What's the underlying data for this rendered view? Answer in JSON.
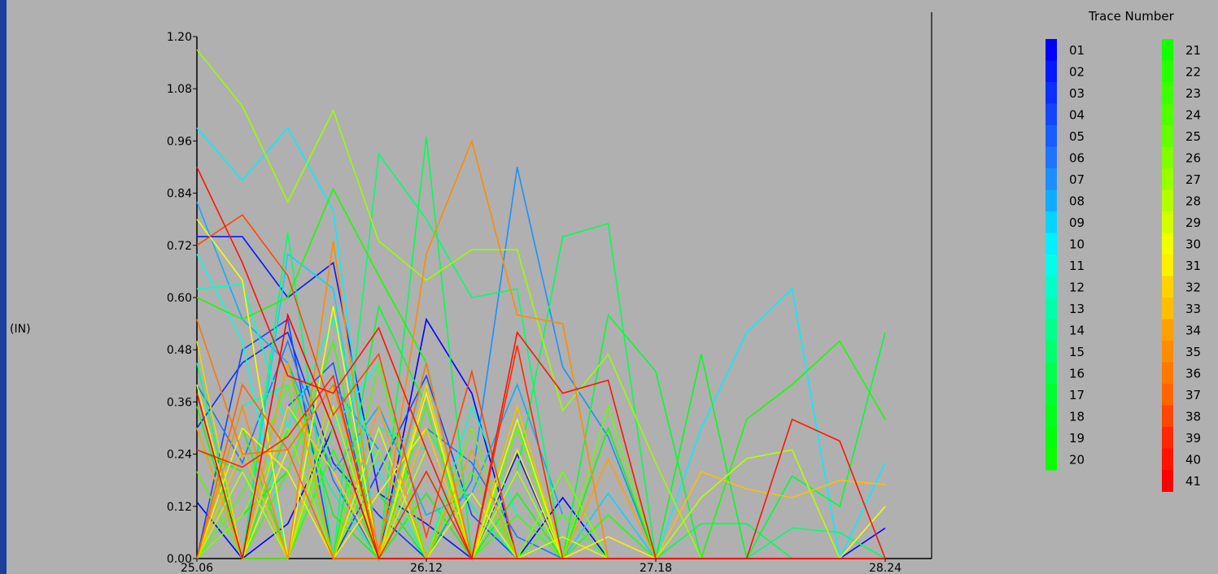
{
  "chart_data": {
    "type": "line",
    "ylabel": "(IN)",
    "legend_title": "Trace Number",
    "legend_position": "right",
    "grid": false,
    "xlim": [
      25.06,
      28.24
    ],
    "ylim": [
      0,
      1.2
    ],
    "x_ticks": [
      "25.06",
      "26.12",
      "27.18",
      "28.24"
    ],
    "y_ticks": [
      "0.00",
      "0.12",
      "0.24",
      "0.36",
      "0.48",
      "0.60",
      "0.72",
      "0.84",
      "0.96",
      "1.08",
      "1.20"
    ],
    "x": [
      25.06,
      25.27,
      25.48,
      25.69,
      25.9,
      26.12,
      26.33,
      26.54,
      26.75,
      26.96,
      27.18,
      27.39,
      27.6,
      27.81,
      28.03,
      28.24
    ],
    "series": [
      {
        "name": "01",
        "color": "#0000ff",
        "values": [
          0.13,
          0.0,
          0.08,
          0.3,
          0.0,
          0.55,
          0.38,
          0.0,
          0.14,
          0.0,
          0.0,
          0.0,
          0.0,
          0.0,
          0.0,
          0.07
        ]
      },
      {
        "name": "02",
        "color": "#0618ff",
        "values": [
          0.74,
          0.74,
          0.6,
          0.68,
          0.15,
          0.08,
          0.0,
          0.24,
          0.0,
          0.0,
          0.0,
          0.0,
          0.0,
          0.0,
          0.0,
          0.0
        ]
      },
      {
        "name": "03",
        "color": "#0c2fff",
        "values": [
          0.3,
          0.45,
          0.52,
          0.22,
          0.1,
          0.0,
          0.3,
          0.0,
          0.0,
          0.0,
          0.0,
          0.0,
          0.0,
          0.0,
          0.0,
          0.0
        ]
      },
      {
        "name": "04",
        "color": "#1246ff",
        "values": [
          0.0,
          0.48,
          0.55,
          0.0,
          0.2,
          0.42,
          0.1,
          0.0,
          0.0,
          0.0,
          0.0,
          0.0,
          0.0,
          0.0,
          0.0,
          0.0
        ]
      },
      {
        "name": "05",
        "color": "#185dff",
        "values": [
          0.2,
          0.0,
          0.35,
          0.45,
          0.0,
          0.15,
          0.0,
          0.2,
          0.0,
          0.0,
          0.0,
          0.0,
          0.0,
          0.0,
          0.0,
          0.0
        ]
      },
      {
        "name": "06",
        "color": "#1e74ff",
        "values": [
          0.4,
          0.22,
          0.5,
          0.18,
          0.0,
          0.3,
          0.22,
          0.05,
          0.0,
          0.0,
          0.0,
          0.0,
          0.0,
          0.0,
          0.0,
          0.0
        ]
      },
      {
        "name": "07",
        "color": "#1b8fff",
        "values": [
          0.0,
          0.3,
          0.0,
          0.4,
          0.25,
          0.0,
          0.18,
          0.9,
          0.44,
          0.28,
          0.0,
          0.0,
          0.0,
          0.0,
          0.0,
          0.0
        ]
      },
      {
        "name": "08",
        "color": "#10abff",
        "values": [
          0.82,
          0.55,
          0.45,
          0.2,
          0.35,
          0.1,
          0.15,
          0.4,
          0.1,
          0.0,
          0.0,
          0.0,
          0.0,
          0.0,
          0.0,
          0.0
        ]
      },
      {
        "name": "09",
        "color": "#06d4ff",
        "values": [
          0.5,
          0.0,
          0.7,
          0.62,
          0.0,
          0.45,
          0.0,
          0.2,
          0.0,
          0.15,
          0.0,
          0.0,
          0.0,
          0.0,
          0.0,
          0.0
        ]
      },
      {
        "name": "10",
        "color": "#00f0ff",
        "values": [
          0.99,
          0.87,
          0.99,
          0.8,
          0.0,
          0.2,
          0.0,
          0.3,
          0.0,
          0.0,
          0.0,
          0.3,
          0.52,
          0.62,
          0.0,
          0.22
        ]
      },
      {
        "name": "11",
        "color": "#00ffe6",
        "values": [
          0.7,
          0.5,
          0.0,
          0.3,
          0.45,
          0.0,
          0.25,
          0.0,
          0.1,
          0.0,
          0.0,
          0.0,
          0.0,
          0.0,
          0.0,
          0.0
        ]
      },
      {
        "name": "12",
        "color": "#00ffc8",
        "values": [
          0.62,
          0.63,
          0.3,
          0.55,
          0.2,
          0.0,
          0.35,
          0.1,
          0.0,
          0.0,
          0.0,
          0.0,
          0.0,
          0.0,
          0.0,
          0.0
        ]
      },
      {
        "name": "13",
        "color": "#00ffaa",
        "values": [
          0.0,
          0.35,
          0.4,
          0.0,
          0.3,
          0.25,
          0.0,
          0.15,
          0.0,
          0.1,
          0.0,
          0.0,
          0.0,
          0.0,
          0.0,
          0.0
        ]
      },
      {
        "name": "14",
        "color": "#00ff8c",
        "values": [
          0.3,
          0.0,
          0.35,
          0.15,
          0.0,
          0.3,
          0.12,
          0.0,
          0.05,
          0.0,
          0.0,
          0.0,
          0.0,
          0.0,
          0.0,
          0.0
        ]
      },
      {
        "name": "15",
        "color": "#00ff6e",
        "values": [
          0.45,
          0.0,
          0.75,
          0.0,
          0.93,
          0.78,
          0.6,
          0.62,
          0.0,
          0.0,
          0.0,
          0.0,
          0.0,
          0.07,
          0.06,
          0.0
        ]
      },
      {
        "name": "16",
        "color": "#00ff50",
        "values": [
          0.0,
          0.25,
          0.0,
          0.4,
          0.0,
          0.97,
          0.0,
          0.2,
          0.74,
          0.77,
          0.0,
          0.08,
          0.08,
          0.0,
          0.0,
          0.0
        ]
      },
      {
        "name": "17",
        "color": "#00ff32",
        "values": [
          0.5,
          0.0,
          0.3,
          0.0,
          0.58,
          0.35,
          0.0,
          0.0,
          0.0,
          0.56,
          0.43,
          0.0,
          0.0,
          0.19,
          0.12,
          0.52
        ]
      },
      {
        "name": "18",
        "color": "#00ff1e",
        "values": [
          0.25,
          0.2,
          0.0,
          0.35,
          0.0,
          0.2,
          0.0,
          0.3,
          0.0,
          0.0,
          0.0,
          0.47,
          0.0,
          0.0,
          0.0,
          0.0
        ]
      },
      {
        "name": "19",
        "color": "#00ff0a",
        "values": [
          0.0,
          0.1,
          0.2,
          0.0,
          0.15,
          0.0,
          0.25,
          0.0,
          0.2,
          0.0,
          0.0,
          0.0,
          0.0,
          0.0,
          0.0,
          0.0
        ]
      },
      {
        "name": "20",
        "color": "#0aff00",
        "values": [
          0.35,
          0.0,
          0.45,
          0.1,
          0.0,
          0.4,
          0.0,
          0.35,
          0.0,
          0.3,
          0.0,
          0.0,
          0.0,
          0.0,
          0.0,
          0.0
        ]
      },
      {
        "name": "21",
        "color": "#14ff00",
        "values": [
          0.6,
          0.55,
          0.6,
          0.85,
          0.65,
          0.45,
          0.0,
          0.15,
          0.0,
          0.0,
          0.0,
          0.0,
          0.32,
          0.4,
          0.5,
          0.32
        ]
      },
      {
        "name": "22",
        "color": "#28ff00",
        "values": [
          0.0,
          0.3,
          0.0,
          0.25,
          0.0,
          0.15,
          0.0,
          0.25,
          0.0,
          0.1,
          0.0,
          0.0,
          0.0,
          0.0,
          0.0,
          0.0
        ]
      },
      {
        "name": "23",
        "color": "#3cff00",
        "values": [
          0.3,
          0.0,
          0.2,
          0.5,
          0.0,
          0.35,
          0.0,
          0.1,
          0.0,
          0.0,
          0.0,
          0.0,
          0.0,
          0.0,
          0.0,
          0.0
        ]
      },
      {
        "name": "24",
        "color": "#50ff00",
        "values": [
          0.0,
          0.15,
          0.4,
          0.0,
          0.45,
          0.0,
          0.2,
          0.0,
          0.1,
          0.0,
          0.0,
          0.0,
          0.0,
          0.0,
          0.0,
          0.0
        ]
      },
      {
        "name": "25",
        "color": "#64ff00",
        "values": [
          0.2,
          0.0,
          0.0,
          0.3,
          0.0,
          0.2,
          0.0,
          0.3,
          0.0,
          0.35,
          0.0,
          0.0,
          0.0,
          0.0,
          0.0,
          0.0
        ]
      },
      {
        "name": "26",
        "color": "#7dff00",
        "values": [
          0.0,
          0.1,
          0.3,
          0.0,
          0.25,
          0.0,
          0.3,
          0.0,
          0.2,
          0.0,
          0.0,
          0.0,
          0.0,
          0.0,
          0.0,
          0.0
        ]
      },
      {
        "name": "27",
        "color": "#96ff00",
        "values": [
          1.17,
          1.04,
          0.82,
          1.03,
          0.73,
          0.64,
          0.71,
          0.71,
          0.34,
          0.47,
          0.22,
          0.0,
          0.0,
          0.0,
          0.0,
          0.0
        ]
      },
      {
        "name": "28",
        "color": "#b4ff00",
        "values": [
          0.0,
          0.2,
          0.0,
          0.35,
          0.0,
          0.25,
          0.0,
          0.2,
          0.0,
          0.0,
          0.0,
          0.14,
          0.23,
          0.25,
          0.0,
          0.0
        ]
      },
      {
        "name": "29",
        "color": "#d2ff00",
        "values": [
          0.4,
          0.0,
          0.25,
          0.0,
          0.3,
          0.0,
          0.15,
          0.0,
          0.05,
          0.0,
          0.0,
          0.0,
          0.0,
          0.0,
          0.0,
          0.0
        ]
      },
      {
        "name": "30",
        "color": "#f0ff00",
        "values": [
          0.78,
          0.64,
          0.0,
          0.58,
          0.0,
          0.38,
          0.0,
          0.32,
          0.0,
          0.0,
          0.0,
          0.0,
          0.0,
          0.0,
          0.0,
          0.12
        ]
      },
      {
        "name": "31",
        "color": "#ffee00",
        "values": [
          0.0,
          0.3,
          0.2,
          0.0,
          0.15,
          0.3,
          0.0,
          0.25,
          0.0,
          0.05,
          0.0,
          0.0,
          0.0,
          0.0,
          0.0,
          0.0
        ]
      },
      {
        "name": "32",
        "color": "#ffd200",
        "values": [
          0.5,
          0.0,
          0.35,
          0.2,
          0.0,
          0.4,
          0.0,
          0.0,
          0.0,
          0.0,
          0.0,
          0.0,
          0.0,
          0.0,
          0.0,
          0.0
        ]
      },
      {
        "name": "33",
        "color": "#ffbe00",
        "values": [
          0.0,
          0.25,
          0.0,
          0.4,
          0.0,
          0.3,
          0.0,
          0.35,
          0.0,
          0.0,
          0.0,
          0.2,
          0.16,
          0.14,
          0.18,
          0.17
        ]
      },
      {
        "name": "34",
        "color": "#ffa000",
        "values": [
          0.3,
          0.0,
          0.45,
          0.0,
          0.35,
          0.0,
          0.25,
          0.0,
          0.0,
          0.23,
          0.0,
          0.0,
          0.0,
          0.0,
          0.0,
          0.0
        ]
      },
      {
        "name": "35",
        "color": "#ff8c00",
        "values": [
          0.0,
          0.35,
          0.0,
          0.73,
          0.0,
          0.7,
          0.96,
          0.56,
          0.54,
          0.0,
          0.0,
          0.0,
          0.0,
          0.0,
          0.0,
          0.0
        ]
      },
      {
        "name": "36",
        "color": "#ff7800",
        "values": [
          0.55,
          0.24,
          0.25,
          0.4,
          0.02,
          0.45,
          0.0,
          0.0,
          0.0,
          0.0,
          0.0,
          0.0,
          0.0,
          0.0,
          0.0,
          0.0
        ]
      },
      {
        "name": "37",
        "color": "#ff6400",
        "values": [
          0.0,
          0.4,
          0.25,
          0.0,
          0.0,
          0.0,
          0.0,
          0.0,
          0.0,
          0.0,
          0.0,
          0.0,
          0.0,
          0.0,
          0.0,
          0.0
        ]
      },
      {
        "name": "38",
        "color": "#ff4600",
        "values": [
          0.72,
          0.79,
          0.65,
          0.33,
          0.47,
          0.05,
          0.43,
          0.0,
          0.0,
          0.0,
          0.0,
          0.0,
          0.0,
          0.0,
          0.0,
          0.0
        ]
      },
      {
        "name": "39",
        "color": "#ff2800",
        "values": [
          0.25,
          0.21,
          0.28,
          0.42,
          0.0,
          0.2,
          0.0,
          0.49,
          0.0,
          0.0,
          0.0,
          0.0,
          0.0,
          0.0,
          0.0,
          0.0
        ]
      },
      {
        "name": "40",
        "color": "#ff1400",
        "values": [
          0.9,
          0.68,
          0.42,
          0.38,
          0.53,
          0.25,
          0.0,
          0.52,
          0.38,
          0.41,
          0.0,
          0.0,
          0.0,
          0.32,
          0.27,
          0.0
        ]
      },
      {
        "name": "41",
        "color": "#ff0000",
        "values": [
          0.38,
          0.0,
          0.56,
          0.3,
          0.0,
          0.0,
          0.0,
          0.0,
          0.0,
          0.0,
          0.0,
          0.0,
          0.0,
          0.0,
          0.0,
          0.0
        ]
      }
    ]
  }
}
